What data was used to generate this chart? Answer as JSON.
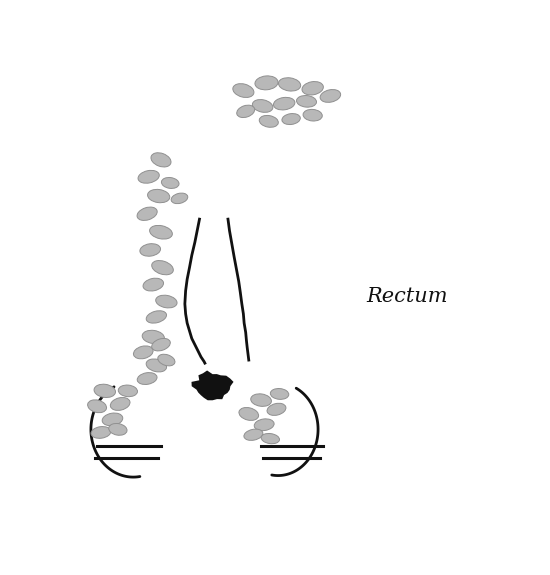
{
  "title": "Rectum",
  "bg_color": "#ffffff",
  "lymph_node_color": "#b8b8b8",
  "lymph_node_edge": "#909090",
  "vessel_red": "#cc1100",
  "vessel_salmon": "#e87060",
  "mesorectum_color": "#f5c080",
  "body_skin_color": "#f5d0b8",
  "tumor_color": "#111111",
  "outline_color": "#111111",
  "mesorectum_pts_x": [
    195,
    210,
    250,
    310,
    360,
    400,
    420,
    415,
    390,
    350,
    300,
    255,
    215,
    200,
    195
  ],
  "mesorectum_pts_y": [
    175,
    130,
    95,
    85,
    100,
    145,
    210,
    300,
    375,
    420,
    440,
    435,
    415,
    350,
    175
  ],
  "pelvic_pts_x": [
    95,
    130,
    162,
    182,
    198,
    215,
    230,
    248,
    262,
    272,
    275,
    268,
    250,
    225,
    200,
    175,
    148,
    118,
    88,
    68,
    55,
    60,
    78,
    95
  ],
  "pelvic_pts_y": [
    430,
    422,
    412,
    400,
    385,
    372,
    362,
    358,
    365,
    380,
    405,
    435,
    462,
    478,
    490,
    492,
    488,
    480,
    468,
    452,
    435,
    422,
    425,
    430
  ],
  "lymph_nodes": [
    [
      225,
      28,
      28,
      17,
      -15
    ],
    [
      255,
      18,
      30,
      18,
      5
    ],
    [
      285,
      20,
      29,
      17,
      -8
    ],
    [
      315,
      25,
      28,
      17,
      10
    ],
    [
      250,
      48,
      27,
      16,
      -12
    ],
    [
      278,
      45,
      28,
      16,
      8
    ],
    [
      307,
      42,
      26,
      15,
      -5
    ],
    [
      338,
      35,
      27,
      16,
      12
    ],
    [
      228,
      55,
      24,
      15,
      18
    ],
    [
      258,
      68,
      25,
      15,
      -10
    ],
    [
      287,
      65,
      24,
      14,
      8
    ],
    [
      315,
      60,
      25,
      15,
      -5
    ],
    [
      118,
      118,
      27,
      17,
      -20
    ],
    [
      102,
      140,
      28,
      16,
      12
    ],
    [
      115,
      165,
      29,
      17,
      -8
    ],
    [
      100,
      188,
      27,
      16,
      18
    ],
    [
      118,
      212,
      30,
      17,
      -12
    ],
    [
      104,
      235,
      27,
      16,
      8
    ],
    [
      120,
      258,
      29,
      17,
      -18
    ],
    [
      108,
      280,
      27,
      16,
      12
    ],
    [
      125,
      302,
      28,
      16,
      -10
    ],
    [
      112,
      322,
      27,
      15,
      15
    ],
    [
      108,
      348,
      29,
      17,
      -8
    ],
    [
      95,
      368,
      26,
      16,
      14
    ],
    [
      112,
      385,
      27,
      16,
      -14
    ],
    [
      100,
      402,
      26,
      15,
      10
    ],
    [
      118,
      358,
      25,
      15,
      18
    ],
    [
      125,
      378,
      23,
      14,
      -18
    ],
    [
      45,
      418,
      28,
      17,
      -8
    ],
    [
      65,
      435,
      26,
      16,
      14
    ],
    [
      35,
      438,
      25,
      16,
      -14
    ],
    [
      55,
      455,
      27,
      16,
      10
    ],
    [
      75,
      418,
      25,
      15,
      -5
    ],
    [
      40,
      472,
      26,
      15,
      8
    ],
    [
      62,
      468,
      24,
      15,
      -10
    ],
    [
      248,
      430,
      27,
      16,
      -8
    ],
    [
      268,
      442,
      25,
      15,
      14
    ],
    [
      232,
      448,
      26,
      16,
      -14
    ],
    [
      252,
      462,
      26,
      15,
      8
    ],
    [
      272,
      422,
      24,
      14,
      -5
    ],
    [
      238,
      475,
      25,
      14,
      12
    ],
    [
      260,
      480,
      24,
      13,
      -8
    ],
    [
      130,
      148,
      23,
      14,
      -8
    ],
    [
      142,
      168,
      22,
      13,
      14
    ]
  ]
}
